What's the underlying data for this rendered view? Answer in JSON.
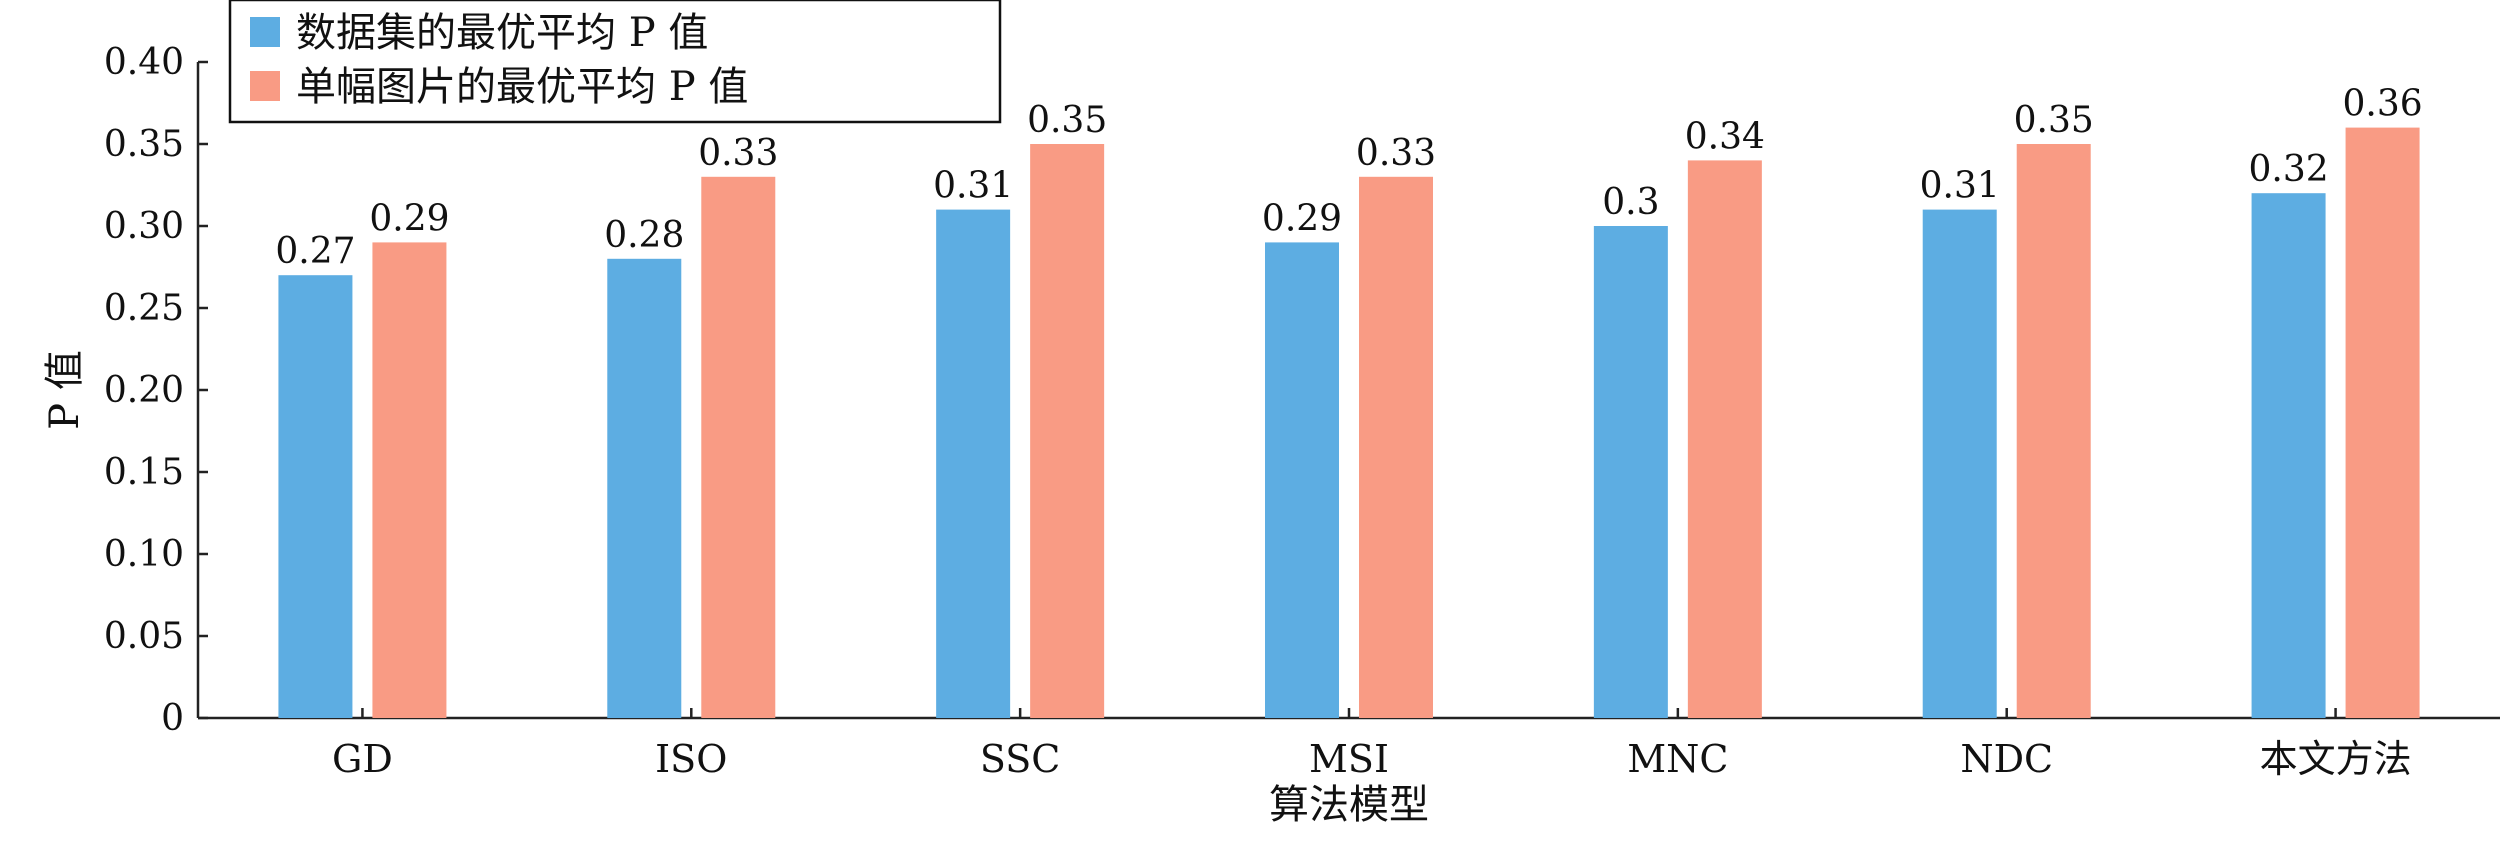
{
  "chart_data": {
    "type": "bar",
    "categories": [
      "GD",
      "ISO",
      "SSC",
      "MSI",
      "MNC",
      "NDC",
      "本文方法"
    ],
    "series": [
      {
        "name": "数据集的最优平均 P 值",
        "color": "#5DADE2",
        "values": [
          0.27,
          0.28,
          0.31,
          0.29,
          0.3,
          0.31,
          0.32
        ],
        "labels": [
          "0.27",
          "0.28",
          "0.31",
          "0.29",
          "0.3",
          "0.31",
          "0.32"
        ]
      },
      {
        "name": "单幅图片的最优平均 P 值",
        "color": "#F99B84",
        "values": [
          0.29,
          0.33,
          0.35,
          0.33,
          0.34,
          0.35,
          0.36
        ],
        "labels": [
          "0.29",
          "0.33",
          "0.35",
          "0.33",
          "0.34",
          "0.35",
          "0.36"
        ]
      }
    ],
    "xlabel": "算法模型",
    "ylabel": "P 值",
    "ylim": [
      0,
      0.4
    ],
    "yticks": [
      "0",
      "0.05",
      "0.10",
      "0.15",
      "0.20",
      "0.25",
      "0.30",
      "0.35",
      "0.40"
    ],
    "legend_position": "top-left",
    "grid": false
  }
}
